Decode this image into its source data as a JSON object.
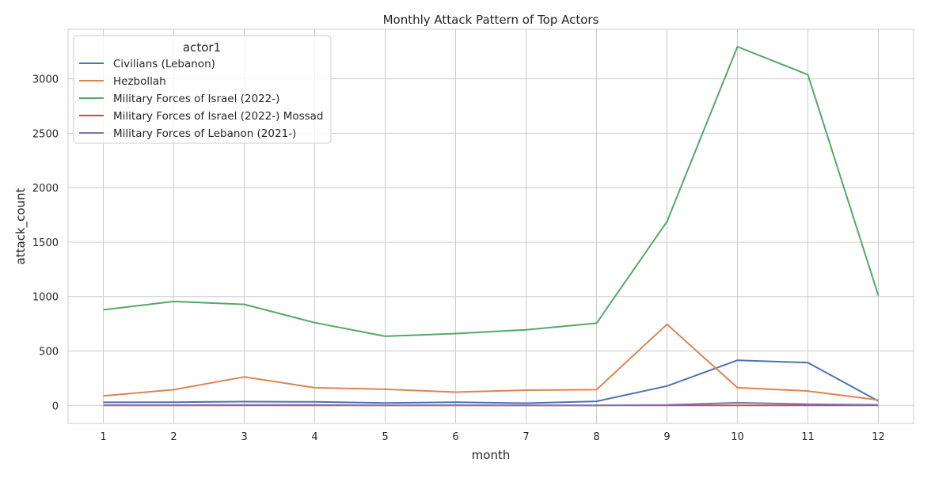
{
  "chart_data": {
    "type": "line",
    "title": "Monthly Attack Pattern of Top Actors",
    "xlabel": "month",
    "ylabel": "attack_count",
    "x": [
      1,
      2,
      3,
      4,
      5,
      6,
      7,
      8,
      9,
      10,
      11,
      12
    ],
    "xlim": [
      0.5,
      12.5
    ],
    "ylim": [
      -165,
      3455
    ],
    "yticks": [
      0,
      500,
      1000,
      1500,
      2000,
      2500,
      3000
    ],
    "grid": true,
    "legend": {
      "title": "actor1",
      "placement": "top-left"
    },
    "series": [
      {
        "name": "Civilians (Lebanon)",
        "color": "#4c72b0",
        "values": [
          28,
          30,
          35,
          33,
          22,
          30,
          20,
          38,
          178,
          415,
          393,
          40
        ]
      },
      {
        "name": "Hezbollah",
        "color": "#dd8452",
        "values": [
          88,
          145,
          262,
          163,
          148,
          122,
          140,
          145,
          745,
          163,
          132,
          50
        ]
      },
      {
        "name": "Military Forces of Israel (2022-)",
        "color": "#55a868",
        "values": [
          878,
          955,
          928,
          760,
          635,
          660,
          695,
          755,
          1688,
          3295,
          3038,
          1010
        ]
      },
      {
        "name": "Military Forces of Israel (2022-) Mossad",
        "color": "#c44e52",
        "values": [
          0,
          0,
          0,
          0,
          0,
          0,
          0,
          0,
          0,
          0,
          0,
          0
        ]
      },
      {
        "name": "Military Forces of Lebanon (2021-)",
        "color": "#8172b3",
        "values": [
          3,
          3,
          5,
          5,
          1,
          2,
          1,
          1,
          5,
          25,
          12,
          6
        ]
      }
    ]
  }
}
